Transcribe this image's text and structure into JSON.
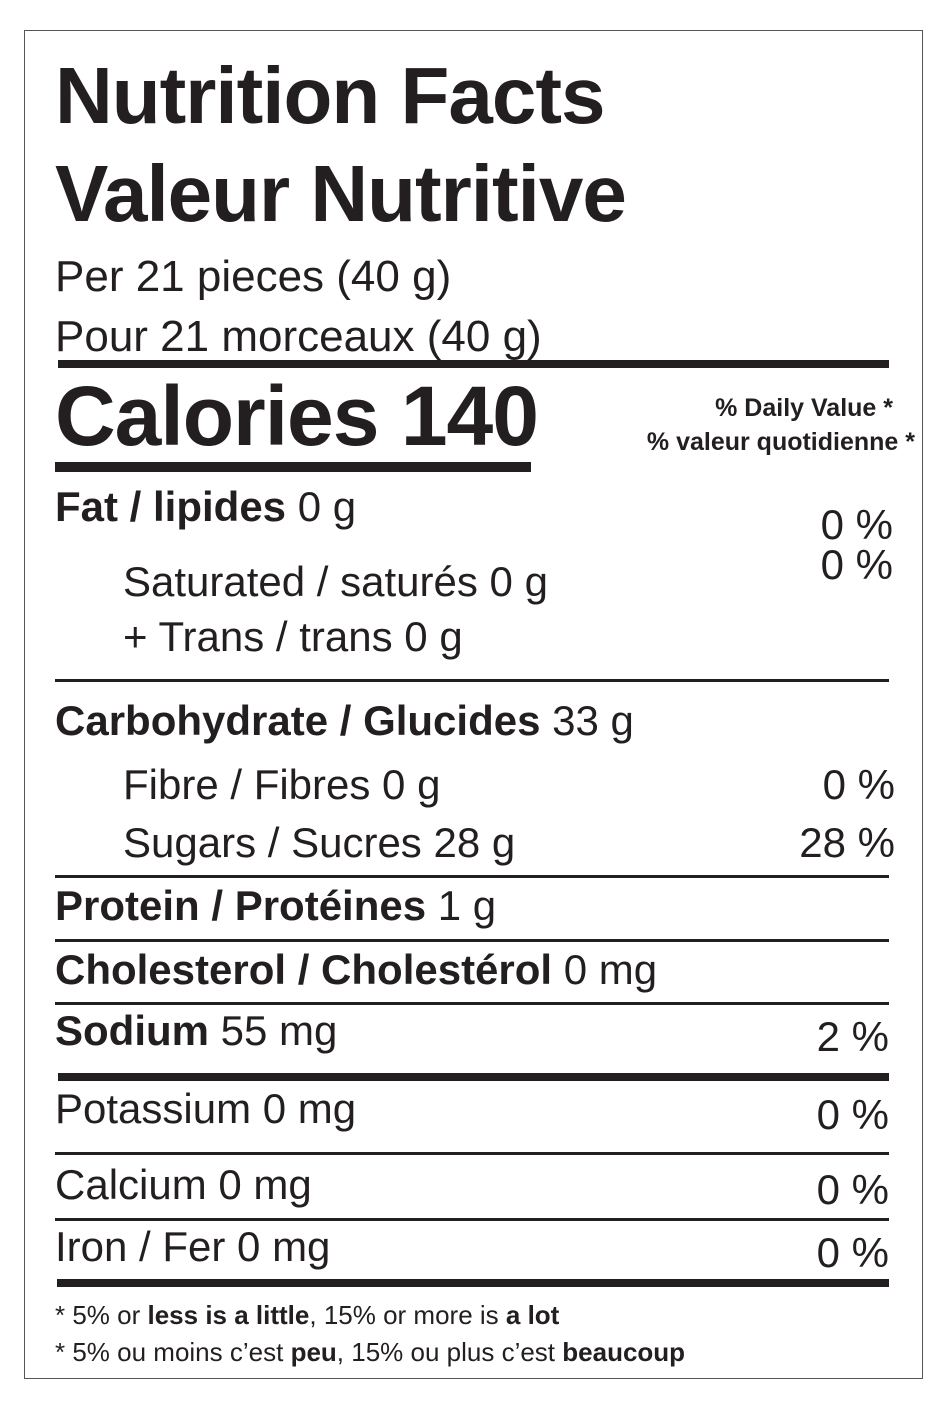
{
  "title_en": "Nutrition Facts",
  "title_fr": "Valeur Nutritive",
  "serving_en": "Per 21 pieces (40 g)",
  "serving_fr": "Pour 21 morceaux (40 g)",
  "calories": "Calories 140",
  "dv_en": "% Daily Value *",
  "dv_fr": "% valeur quotidienne *",
  "fat": {
    "label": "Fat / lipides",
    "amount": "0 g",
    "dv": "0 %"
  },
  "saturated": {
    "label": "Saturated / saturés 0 g",
    "dv": "0 %"
  },
  "trans": {
    "label": "+ Trans / trans 0 g"
  },
  "carb": {
    "label": "Carbohydrate / Glucides",
    "amount": "33 g"
  },
  "fibre": {
    "label": "Fibre / Fibres 0 g",
    "dv": "0 %"
  },
  "sugars": {
    "label": "Sugars / Sucres 28 g",
    "dv": "28 %"
  },
  "protein": {
    "label": "Protein / Protéines",
    "amount": "1 g"
  },
  "cholesterol": {
    "label": "Cholesterol / Cholestérol",
    "amount": "0 mg"
  },
  "sodium": {
    "label": "Sodium",
    "amount": "55 mg",
    "dv": "2 %"
  },
  "potassium": {
    "label": "Potassium 0 mg",
    "dv": "0 %"
  },
  "calcium": {
    "label": "Calcium 0 mg",
    "dv": "0 %"
  },
  "iron": {
    "label": "Iron / Fer 0 mg",
    "dv": "0 %"
  },
  "footnote_en": {
    "a": "* 5% or ",
    "b": "less is a little",
    "c": ", 15% or more is ",
    "d": "a lot"
  },
  "footnote_fr": {
    "a": "* 5% ou moins c’est ",
    "b": "peu",
    "c": ", 15% ou plus c’est ",
    "d": "beaucoup"
  }
}
